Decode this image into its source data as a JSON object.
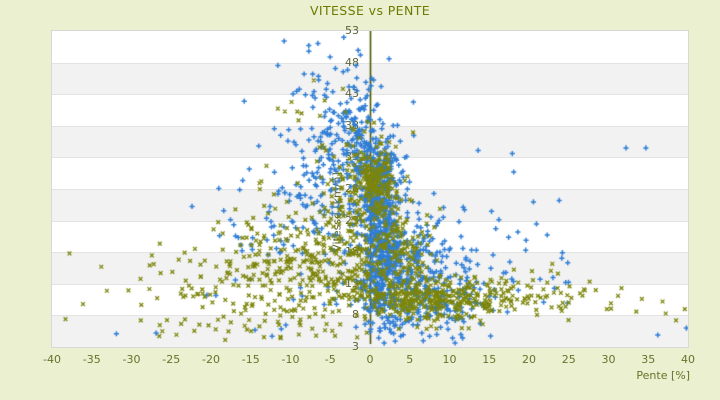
{
  "title": "VITESSE vs PENTE",
  "colors": {
    "background": "#ebf0d0",
    "plot_bg": "#ffffff",
    "band_gray": "#f2f2f2",
    "band_line": "#e3e3e3",
    "plot_border": "#d8d8d8",
    "axis_line": "#4d5500",
    "title_color": "#6e7a00",
    "x_tick": "#68722a",
    "y_tick": "#5c6335",
    "series_blue": "#2e7dd6",
    "series_olive": "#7c850a"
  },
  "chart_data": {
    "type": "scatter",
    "title": "VITESSE vs PENTE",
    "xlabel": "Pente [%]",
    "ylabel": "Vitesse [km/h]",
    "xlim": [
      -40,
      40
    ],
    "ylim": [
      3,
      53
    ],
    "x_ticks": [
      -40,
      -35,
      -30,
      -25,
      -20,
      -15,
      -10,
      -5,
      0,
      5,
      10,
      15,
      20,
      25,
      30,
      35,
      40
    ],
    "y_ticks": [
      53,
      48,
      43,
      38,
      33,
      28,
      23,
      18,
      13,
      8,
      3
    ],
    "grid": "alternating-horizontal-bands-white-gray",
    "legend": "none",
    "zero_axis_line": {
      "x": 0,
      "color": "#4d5500"
    },
    "series": [
      {
        "name": "vitesse-montee-bleu",
        "marker": "plus",
        "color": "#2e7dd6",
        "seed": 42,
        "clip": {
          "x": [
            -32,
            39
          ],
          "y": [
            3.4,
            52.3
          ]
        },
        "clusters": [
          {
            "x": 1.3,
            "sx": 1.1,
            "y": 19,
            "sy": 6.0,
            "n": 430
          },
          {
            "x": 0.9,
            "sx": 1.7,
            "y": 29,
            "sy": 4.5,
            "n": 230
          },
          {
            "x": -3.5,
            "sx": 3.4,
            "y": 32.5,
            "sy": 6.0,
            "n": 160
          },
          {
            "x": 5.5,
            "sx": 3.0,
            "y": 14.5,
            "sy": 5.0,
            "n": 270
          },
          {
            "x": -9,
            "sx": 6.0,
            "y": 22,
            "sy": 7.0,
            "n": 120
          },
          {
            "x": 8,
            "sx": 5.0,
            "y": 9.5,
            "sy": 2.8,
            "n": 130
          },
          {
            "x": -2,
            "sx": 1.6,
            "y": 38,
            "sy": 4.0,
            "n": 70
          },
          {
            "x": -5,
            "sx": 3.0,
            "y": 44,
            "sy": 3.5,
            "n": 30
          },
          {
            "x": 14,
            "sx": 6.0,
            "y": 18,
            "sy": 5.0,
            "n": 60
          }
        ],
        "outliers": [
          [
            -10.8,
            51.4
          ],
          [
            -7.7,
            50.7
          ],
          [
            -3.3,
            52.0
          ],
          [
            -1.2,
            49.2
          ],
          [
            2.4,
            48.6
          ],
          [
            32.2,
            34.5
          ],
          [
            34.7,
            34.5
          ],
          [
            39.8,
            6.0
          ],
          [
            36.2,
            4.9
          ],
          [
            -31.9,
            5.1
          ],
          [
            -26.9,
            5.2
          ],
          [
            18.6,
            21.2
          ],
          [
            23.8,
            26.2
          ],
          [
            13.6,
            34.1
          ],
          [
            17.9,
            33.6
          ]
        ]
      },
      {
        "name": "vitesse-descente-olive",
        "marker": "x",
        "color": "#7c850a",
        "seed": 7,
        "clip": {
          "x": [
            -31,
            39.5
          ],
          "y": [
            3.4,
            46
          ]
        },
        "clusters": [
          {
            "x": 0.8,
            "sx": 1.3,
            "y": 29.5,
            "sy": 2.8,
            "n": 180
          },
          {
            "x": -7,
            "sx": 5.5,
            "y": 18,
            "sy": 5.5,
            "n": 220
          },
          {
            "x": -14,
            "sx": 7.5,
            "y": 12,
            "sy": 4.5,
            "n": 200
          },
          {
            "x": 2.5,
            "sx": 3.5,
            "y": 13,
            "sy": 3.5,
            "n": 150
          },
          {
            "x": 9,
            "sx": 4.5,
            "y": 10.8,
            "sy": 1.6,
            "n": 240
          },
          {
            "x": -3,
            "sx": 3.0,
            "y": 23,
            "sy": 4.5,
            "n": 110
          },
          {
            "x": 17,
            "sx": 6.0,
            "y": 11,
            "sy": 1.8,
            "n": 90
          },
          {
            "x": -6,
            "sx": 4.0,
            "y": 38,
            "sy": 3.5,
            "n": 22
          },
          {
            "x": 4,
            "sx": 2.0,
            "y": 20,
            "sy": 3.0,
            "n": 80
          }
        ],
        "outliers": [
          [
            -37.8,
            17.8
          ],
          [
            -33.8,
            15.7
          ],
          [
            -38.3,
            7.4
          ],
          [
            -33.1,
            11.9
          ],
          [
            -36.1,
            9.8
          ],
          [
            38.5,
            7.2
          ],
          [
            39.6,
            9.0
          ],
          [
            36.8,
            10.2
          ],
          [
            34.2,
            10.6
          ],
          [
            31.2,
            11.1
          ],
          [
            28.4,
            12.0
          ],
          [
            25.1,
            12.6
          ],
          [
            22.3,
            13.2
          ],
          [
            -27.2,
            16.1
          ],
          [
            20.8,
            10.1
          ],
          [
            24.6,
            9.4
          ],
          [
            29.8,
            9.0
          ],
          [
            33.5,
            8.6
          ],
          [
            37.2,
            8.3
          ]
        ]
      }
    ]
  }
}
